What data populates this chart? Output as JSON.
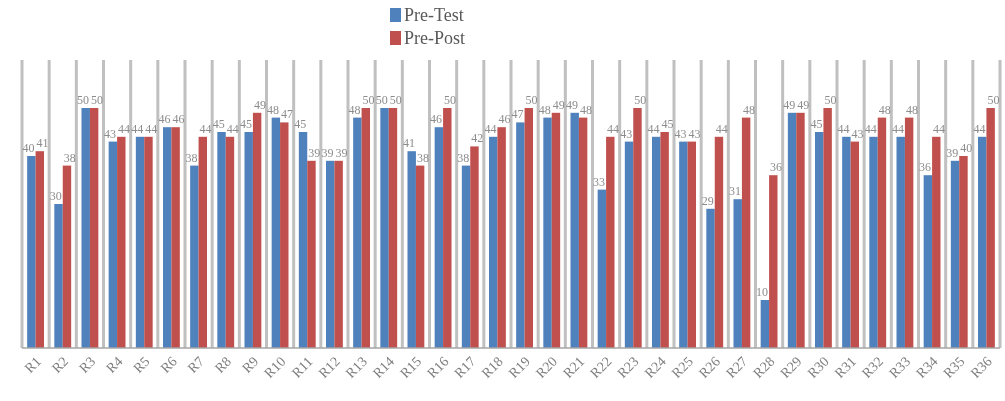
{
  "chart_data": {
    "type": "bar",
    "categories": [
      "R1",
      "R2",
      "R3",
      "R4",
      "R5",
      "R6",
      "R7",
      "R8",
      "R9",
      "R10",
      "R11",
      "R12",
      "R13",
      "R14",
      "R15",
      "R16",
      "R17",
      "R18",
      "R19",
      "R20",
      "R21",
      "R22",
      "R23",
      "R24",
      "R25",
      "R26",
      "R27",
      "R28",
      "R29",
      "R30",
      "R31",
      "R32",
      "R33",
      "R34",
      "R35",
      "R36"
    ],
    "series": [
      {
        "name": "Pre-Test",
        "color": "#4f81bd",
        "values": [
          40,
          30,
          50,
          43,
          44,
          46,
          38,
          45,
          45,
          48,
          45,
          39,
          48,
          50,
          41,
          46,
          38,
          44,
          47,
          48,
          49,
          33,
          43,
          44,
          43,
          29,
          31,
          10,
          49,
          45,
          44,
          44,
          44,
          36,
          39,
          44
        ]
      },
      {
        "name": "Pre-Post",
        "color": "#c0504d",
        "values": [
          41,
          38,
          50,
          44,
          44,
          46,
          44,
          44,
          49,
          47,
          39,
          39,
          50,
          50,
          38,
          50,
          42,
          46,
          50,
          49,
          48,
          44,
          50,
          45,
          43,
          44,
          48,
          36,
          49,
          50,
          43,
          48,
          48,
          44,
          40,
          50
        ]
      }
    ],
    "data_labels": true,
    "grid": "x",
    "legend": "top"
  }
}
